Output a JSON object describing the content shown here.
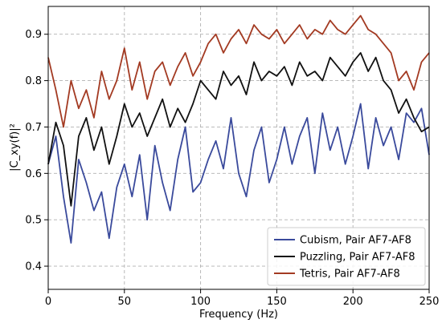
{
  "chart_data": {
    "type": "line",
    "xlabel": "Frequency (Hz)",
    "ylabel": "|C_xy(f)|²",
    "xlim": [
      0,
      250
    ],
    "ylim": [
      0.35,
      0.96
    ],
    "xticks": [
      "0",
      "50",
      "100",
      "150",
      "200",
      "250"
    ],
    "yticks": [
      "0.4",
      "0.5",
      "0.6",
      "0.7",
      "0.8",
      "0.9"
    ],
    "grid": true,
    "legend_position": "lower-right",
    "x": [
      0,
      5,
      10,
      15,
      20,
      25,
      30,
      35,
      40,
      45,
      50,
      55,
      60,
      65,
      70,
      75,
      80,
      85,
      90,
      95,
      100,
      105,
      110,
      115,
      120,
      125,
      130,
      135,
      140,
      145,
      150,
      155,
      160,
      165,
      170,
      175,
      180,
      185,
      190,
      195,
      200,
      205,
      210,
      215,
      220,
      225,
      230,
      235,
      240,
      245,
      250
    ],
    "series": [
      {
        "name": "Cubism, Pair AF7-AF8",
        "color": "#3a4a9c",
        "values": [
          0.62,
          0.68,
          0.55,
          0.45,
          0.63,
          0.58,
          0.52,
          0.56,
          0.46,
          0.57,
          0.62,
          0.55,
          0.64,
          0.5,
          0.66,
          0.58,
          0.52,
          0.63,
          0.7,
          0.56,
          0.58,
          0.63,
          0.67,
          0.61,
          0.72,
          0.6,
          0.55,
          0.65,
          0.7,
          0.58,
          0.63,
          0.7,
          0.62,
          0.68,
          0.72,
          0.6,
          0.73,
          0.65,
          0.7,
          0.62,
          0.68,
          0.75,
          0.61,
          0.72,
          0.66,
          0.7,
          0.63,
          0.73,
          0.71,
          0.74,
          0.64
        ]
      },
      {
        "name": "Puzzling, Pair AF7-AF8",
        "color": "#111111",
        "values": [
          0.62,
          0.71,
          0.66,
          0.53,
          0.68,
          0.72,
          0.65,
          0.7,
          0.62,
          0.68,
          0.75,
          0.7,
          0.73,
          0.68,
          0.72,
          0.76,
          0.7,
          0.74,
          0.71,
          0.75,
          0.8,
          0.78,
          0.76,
          0.82,
          0.79,
          0.81,
          0.77,
          0.84,
          0.8,
          0.82,
          0.81,
          0.83,
          0.79,
          0.84,
          0.81,
          0.82,
          0.8,
          0.85,
          0.83,
          0.81,
          0.84,
          0.86,
          0.82,
          0.85,
          0.8,
          0.78,
          0.73,
          0.76,
          0.72,
          0.69,
          0.7
        ]
      },
      {
        "name": "Tetris, Pair AF7-AF8",
        "color": "#a33a22",
        "values": [
          0.85,
          0.78,
          0.7,
          0.8,
          0.74,
          0.78,
          0.72,
          0.82,
          0.76,
          0.8,
          0.87,
          0.78,
          0.84,
          0.76,
          0.82,
          0.84,
          0.79,
          0.83,
          0.86,
          0.81,
          0.84,
          0.88,
          0.9,
          0.86,
          0.89,
          0.91,
          0.88,
          0.92,
          0.9,
          0.89,
          0.91,
          0.88,
          0.9,
          0.92,
          0.89,
          0.91,
          0.9,
          0.93,
          0.91,
          0.9,
          0.92,
          0.94,
          0.91,
          0.9,
          0.88,
          0.86,
          0.8,
          0.82,
          0.78,
          0.84,
          0.86
        ]
      }
    ]
  }
}
